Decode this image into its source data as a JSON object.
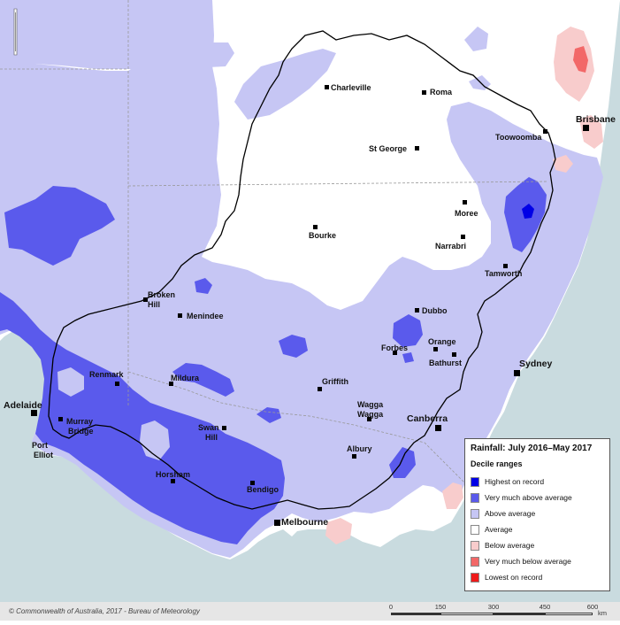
{
  "map": {
    "title": "Rainfall: July 2016–May 2017",
    "legend": {
      "subtitle": "Decile ranges",
      "items": [
        {
          "label": "Highest on record",
          "color": "#0000e6"
        },
        {
          "label": "Very much above average",
          "color": "#5a5aec"
        },
        {
          "label": "Above average",
          "color": "#c6c6f4"
        },
        {
          "label": "Average",
          "color": "#ffffff"
        },
        {
          "label": "Below average",
          "color": "#f8cccc"
        },
        {
          "label": "Very much below average",
          "color": "#f26868"
        },
        {
          "label": "Lowest on record",
          "color": "#ee1a1a"
        }
      ]
    },
    "colors": {
      "sea": "#c9dbdf",
      "land": "#ffffff",
      "border": "#000000"
    },
    "towns": [
      {
        "name": "Charleville"
      },
      {
        "name": "Roma"
      },
      {
        "name": "Toowoomba"
      },
      {
        "name": "St George"
      },
      {
        "name": "Moree"
      },
      {
        "name": "Narrabri"
      },
      {
        "name": "Bourke"
      },
      {
        "name": "Tamworth"
      },
      {
        "name": "Broken Hill"
      },
      {
        "name": "Menindee"
      },
      {
        "name": "Dubbo"
      },
      {
        "name": "Orange"
      },
      {
        "name": "Forbes"
      },
      {
        "name": "Bathurst"
      },
      {
        "name": "Renmark"
      },
      {
        "name": "Mildura"
      },
      {
        "name": "Griffith"
      },
      {
        "name": "Wagga Wagga"
      },
      {
        "name": "Swan Hill"
      },
      {
        "name": "Murray Bridge"
      },
      {
        "name": "Port Elliot"
      },
      {
        "name": "Albury"
      },
      {
        "name": "Horsham"
      },
      {
        "name": "Bendigo"
      }
    ],
    "cities": [
      {
        "name": "Brisbane"
      },
      {
        "name": "Sydney"
      },
      {
        "name": "Canberra"
      },
      {
        "name": "Adelaide"
      },
      {
        "name": "Melbourne"
      }
    ],
    "footer": {
      "copyright": "© Commonwealth of Australia, 2017 - Bureau of Meteorology",
      "scale_ticks": [
        "0",
        "150",
        "300",
        "450",
        "600"
      ],
      "scale_unit": "km"
    }
  }
}
